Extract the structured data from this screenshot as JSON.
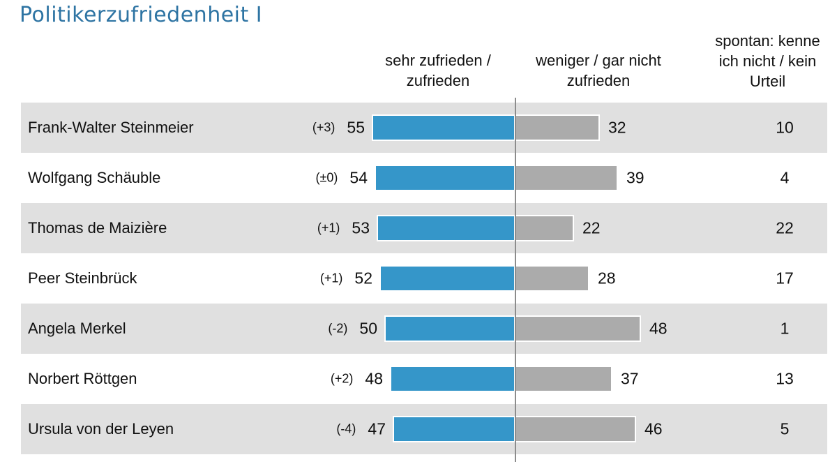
{
  "title": {
    "text": "Politikerzufriedenheit I",
    "color": "#2e74a3"
  },
  "columns": {
    "approve": "sehr zufrieden /\nzufrieden",
    "disapprove": "weniger / gar nicht\nzufrieden",
    "unknown": "spontan: kenne\nich nicht / kein\nUrteil"
  },
  "chart_data": {
    "type": "bar",
    "orientation": "horizontal",
    "diverging_axis": true,
    "title": "Politikerzufriedenheit I",
    "unit": "percent",
    "categories": [
      "Frank-Walter Steinmeier",
      "Wolfgang Schäuble",
      "Thomas de Maizière",
      "Peer Steinbrück",
      "Angela Merkel",
      "Norbert Röttgen",
      "Ursula von der Leyen"
    ],
    "series": [
      {
        "name": "sehr zufrieden / zufrieden",
        "side": "left-of-axis",
        "color": "#3596c9",
        "values": [
          55,
          54,
          53,
          52,
          50,
          48,
          47
        ]
      },
      {
        "name": "weniger / gar nicht zufrieden",
        "side": "right-of-axis",
        "color": "#ababab",
        "values": [
          32,
          39,
          22,
          28,
          48,
          37,
          46
        ]
      },
      {
        "name": "spontan: kenne ich nicht / kein Urteil",
        "display": "number-only",
        "values": [
          10,
          4,
          22,
          17,
          1,
          13,
          5
        ]
      }
    ],
    "change_vs_previous": [
      "(+3)",
      "(±0)",
      "(+1)",
      "(+1)",
      "(-2)",
      "(+2)",
      "(-4)"
    ],
    "legend_position": "top",
    "grid": false,
    "zebra_striping": true
  },
  "style": {
    "bar_blue": "#3596c9",
    "bar_gray": "#ababab",
    "row_stripe": "#e0e0e0",
    "axis_line": "#8c8c8c",
    "title_color": "#2e74a3"
  }
}
